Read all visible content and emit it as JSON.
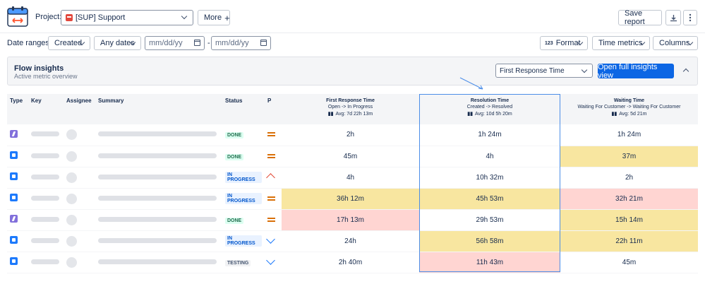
{
  "header": {
    "project_label": "Project:",
    "project_value": "[SUP] Support",
    "more_label": "More",
    "more_icon": "plus-icon",
    "save_report_label": "Save report"
  },
  "filters": {
    "date_ranges_label": "Date ranges:",
    "date_field": "Created",
    "date_preset": "Any dates",
    "date_from_placeholder": "mm/dd/yy",
    "date_separator": "-",
    "date_to_placeholder": "mm/dd/yy",
    "format_icon": "123",
    "format_label": "Format",
    "time_metrics_label": "Time metrics",
    "columns_label": "Columns"
  },
  "panel": {
    "title": "Flow insights",
    "subtitle": "Active metric overview",
    "metric_value": "First Response Time",
    "open_button": "Open full insights view"
  },
  "table": {
    "headers": {
      "type": "Type",
      "key": "Key",
      "assignee": "Assignee",
      "summary": "Summary",
      "status": "Status",
      "priority": "P"
    },
    "metrics": [
      {
        "title": "First Response Time",
        "sub": "Open -> In Progress",
        "avg": "Avg: 7d 22h 13m"
      },
      {
        "title": "Resolution Time",
        "sub": "Created -> Resolved",
        "avg": "Avg: 10d 5h 20m"
      },
      {
        "title": "Waiting Time",
        "sub": "Waiting For Customer -> Waiting For Customer",
        "avg": "Avg: 5d 21m"
      }
    ],
    "rows": [
      {
        "type": "bolt",
        "status": "DONE",
        "priority": "medium",
        "m1": "2h",
        "m2": "1h 24m",
        "m3": "1h 24m"
      },
      {
        "type": "quote",
        "status": "DONE",
        "priority": "medium",
        "m1": "45m",
        "m2": "4h",
        "m3": "37m"
      },
      {
        "type": "ticket",
        "status": "IN PROGRESS",
        "priority": "high",
        "m1": "4h",
        "m2": "10h 32m",
        "m3": "2h"
      },
      {
        "type": "ticket",
        "status": "IN PROGRESS",
        "priority": "medium",
        "m1": "36h 12m",
        "m2": "45h 53m",
        "m3": "32h 21m"
      },
      {
        "type": "bolt",
        "status": "DONE",
        "priority": "medium",
        "m1": "17h 13m",
        "m2": "29h 53m",
        "m3": "15h 14m"
      },
      {
        "type": "quote",
        "status": "IN PROGRESS",
        "priority": "low",
        "m1": "24h",
        "m2": "56h 58m",
        "m3": "22h 11m"
      },
      {
        "type": "quote",
        "status": "TESTING",
        "priority": "low",
        "m1": "2h 40m",
        "m2": "11h 43m",
        "m3": "45m"
      }
    ]
  },
  "colors": {
    "highlight_yellow": "#f8e6a0",
    "highlight_red": "#ffd5d2",
    "primary": "#0c66e4",
    "selection_border": "#4c8ee8"
  }
}
